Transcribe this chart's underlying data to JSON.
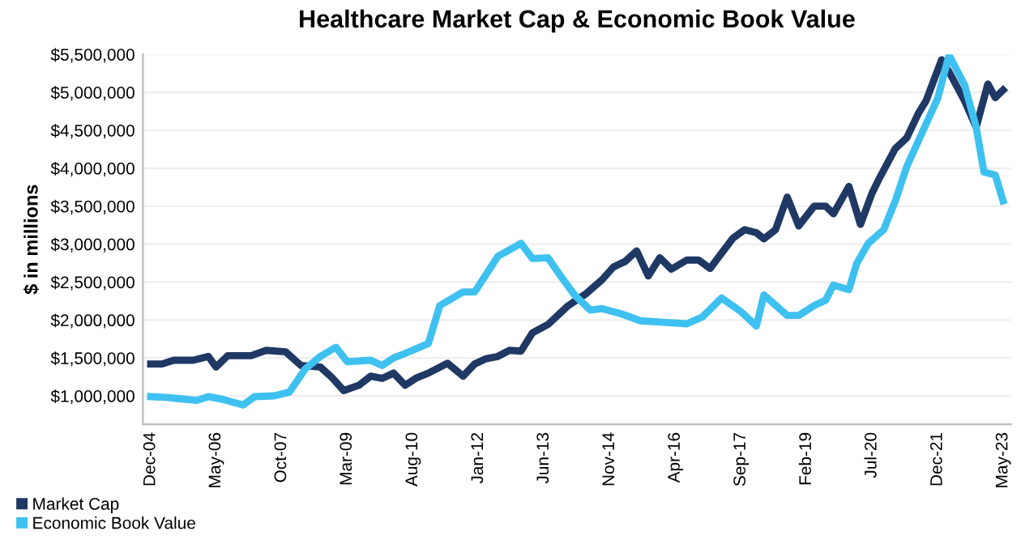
{
  "chart_data": {
    "type": "line",
    "title": "Healthcare Market Cap & Economic Book Value",
    "ylabel": "$ in millions",
    "series": [
      {
        "name": "Market Cap",
        "color": "#1f3864",
        "x": [
          "2004-12",
          "2005-03",
          "2005-06",
          "2005-11",
          "2006-03",
          "2006-05",
          "2006-08",
          "2007-02",
          "2007-06",
          "2007-11",
          "2008-03",
          "2008-08",
          "2008-11",
          "2009-02",
          "2009-06",
          "2009-09",
          "2009-12",
          "2010-03",
          "2010-06",
          "2010-09",
          "2010-12",
          "2011-05",
          "2011-09",
          "2011-12",
          "2012-03",
          "2012-06",
          "2012-09",
          "2012-12",
          "2013-03",
          "2013-07",
          "2013-12",
          "2014-05",
          "2014-09",
          "2014-12",
          "2015-03",
          "2015-06",
          "2015-09",
          "2015-12",
          "2016-03",
          "2016-07",
          "2016-10",
          "2017-01",
          "2017-04",
          "2017-07",
          "2017-10",
          "2018-01",
          "2018-03",
          "2018-06",
          "2018-09",
          "2018-12",
          "2019-04",
          "2019-07",
          "2019-09",
          "2020-01",
          "2020-04",
          "2020-07",
          "2020-09",
          "2021-01",
          "2021-04",
          "2021-07",
          "2021-09",
          "2022-01",
          "2022-03",
          "2022-07",
          "2022-10",
          "2023-01",
          "2023-03",
          "2023-05"
        ],
        "values": [
          1420000,
          1420000,
          1470000,
          1470000,
          1520000,
          1380000,
          1530000,
          1530000,
          1600000,
          1580000,
          1400000,
          1380000,
          1240000,
          1070000,
          1140000,
          1260000,
          1230000,
          1300000,
          1140000,
          1240000,
          1300000,
          1430000,
          1260000,
          1420000,
          1490000,
          1520000,
          1600000,
          1590000,
          1830000,
          1940000,
          2180000,
          2350000,
          2530000,
          2700000,
          2770000,
          2910000,
          2580000,
          2820000,
          2670000,
          2790000,
          2790000,
          2680000,
          2880000,
          3080000,
          3190000,
          3150000,
          3070000,
          3190000,
          3620000,
          3240000,
          3500000,
          3500000,
          3400000,
          3760000,
          3260000,
          3670000,
          3880000,
          4260000,
          4400000,
          4720000,
          4890000,
          5430000,
          5270000,
          4890000,
          4540000,
          5110000,
          4930000,
          5030000
        ]
      },
      {
        "name": "Economic Book Value",
        "color": "#3ec1f0",
        "x": [
          "2004-12",
          "2005-04",
          "2005-08",
          "2005-12",
          "2006-03",
          "2006-07",
          "2006-12",
          "2007-03",
          "2007-08",
          "2007-12",
          "2008-04",
          "2008-08",
          "2008-12",
          "2009-03",
          "2009-09",
          "2009-12",
          "2010-03",
          "2010-06",
          "2010-12",
          "2011-03",
          "2011-06",
          "2011-09",
          "2011-12",
          "2012-03",
          "2012-06",
          "2012-12",
          "2013-03",
          "2013-07",
          "2013-10",
          "2014-02",
          "2014-06",
          "2014-09",
          "2015-02",
          "2015-07",
          "2016-01",
          "2016-07",
          "2016-11",
          "2017-04",
          "2017-09",
          "2018-01",
          "2018-03",
          "2018-09",
          "2018-12",
          "2019-04",
          "2019-07",
          "2019-09",
          "2020-01",
          "2020-03",
          "2020-06",
          "2020-10",
          "2021-01",
          "2021-04",
          "2021-08",
          "2021-12",
          "2022-03",
          "2022-07",
          "2022-10",
          "2022-12",
          "2023-03",
          "2023-05"
        ],
        "values": [
          990000,
          980000,
          960000,
          940000,
          990000,
          950000,
          880000,
          990000,
          1000000,
          1050000,
          1350000,
          1520000,
          1640000,
          1450000,
          1470000,
          1400000,
          1500000,
          1560000,
          1690000,
          2190000,
          2280000,
          2370000,
          2370000,
          2600000,
          2840000,
          3010000,
          2810000,
          2820000,
          2600000,
          2320000,
          2130000,
          2150000,
          2080000,
          1990000,
          1970000,
          1950000,
          2040000,
          2290000,
          2110000,
          1920000,
          2330000,
          2060000,
          2060000,
          2190000,
          2260000,
          2460000,
          2400000,
          2740000,
          3010000,
          3190000,
          3570000,
          4020000,
          4470000,
          4920000,
          5490000,
          5100000,
          4540000,
          3950000,
          3910000,
          3570000
        ]
      }
    ],
    "xlim": [
      "2004-10",
      "2023-07"
    ],
    "xticks": [
      {
        "value": "2004-12",
        "label": "Dec-04"
      },
      {
        "value": "2006-05",
        "label": "May-06"
      },
      {
        "value": "2007-10",
        "label": "Oct-07"
      },
      {
        "value": "2009-03",
        "label": "Mar-09"
      },
      {
        "value": "2010-08",
        "label": "Aug-10"
      },
      {
        "value": "2012-01",
        "label": "Jan-12"
      },
      {
        "value": "2013-06",
        "label": "Jun-13"
      },
      {
        "value": "2014-11",
        "label": "Nov-14"
      },
      {
        "value": "2016-04",
        "label": "Apr-16"
      },
      {
        "value": "2017-09",
        "label": "Sep-17"
      },
      {
        "value": "2019-02",
        "label": "Feb-19"
      },
      {
        "value": "2020-07",
        "label": "Jul-20"
      },
      {
        "value": "2021-12",
        "label": "Dec-21"
      },
      {
        "value": "2023-05",
        "label": "May-23"
      }
    ],
    "ylim": [
      625000,
      5500000
    ],
    "yticks": [
      {
        "value": 1000000,
        "label": "$1,000,000"
      },
      {
        "value": 1500000,
        "label": "$1,500,000"
      },
      {
        "value": 2000000,
        "label": "$2,000,000"
      },
      {
        "value": 2500000,
        "label": "$2,500,000"
      },
      {
        "value": 3000000,
        "label": "$3,000,000"
      },
      {
        "value": 3500000,
        "label": "$3,500,000"
      },
      {
        "value": 4000000,
        "label": "$4,000,000"
      },
      {
        "value": 4500000,
        "label": "$4,500,000"
      },
      {
        "value": 5000000,
        "label": "$5,000,000"
      },
      {
        "value": 5500000,
        "label": "$5,500,000"
      }
    ],
    "grid": "y",
    "legend": "bottom left",
    "marker": "none",
    "line_style": "solid"
  }
}
